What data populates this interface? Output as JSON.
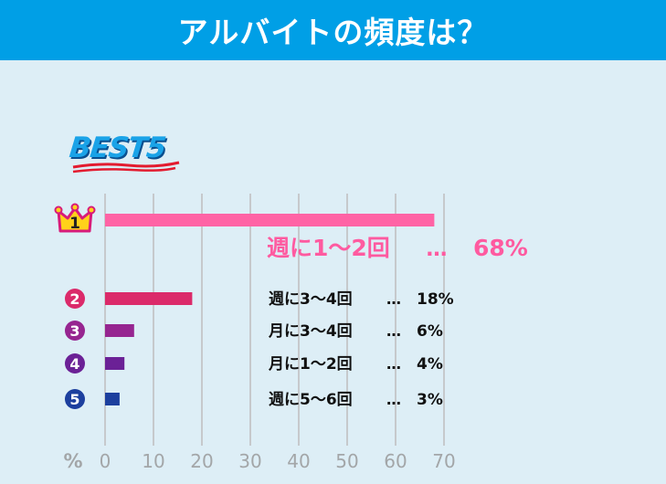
{
  "header": {
    "title": "アルバイトの頻度は？"
  },
  "badge": {
    "text": "BEST5"
  },
  "chart_data": {
    "type": "bar",
    "orientation": "horizontal",
    "title": "アルバイトの頻度は？",
    "categories": [
      "週に1〜2回",
      "週に3〜4回",
      "月に3〜4回",
      "月に1〜2回",
      "週に5〜6回"
    ],
    "values": [
      68,
      18,
      6,
      4,
      3
    ],
    "ranks": [
      "1",
      "2",
      "3",
      "4",
      "5"
    ],
    "value_labels": [
      "68%",
      "18%",
      "6%",
      "4%",
      "3%"
    ],
    "separator": "…",
    "x_unit": "%",
    "xlim": [
      0,
      70
    ],
    "x_ticks": [
      "0",
      "10",
      "20",
      "30",
      "40",
      "50",
      "60",
      "70"
    ],
    "grid": true,
    "colors": [
      "#ff63a5",
      "#db2a6a",
      "#962590",
      "#6b2196",
      "#1c3f9e"
    ],
    "label_colors": [
      "#ff5aa0",
      "#111111",
      "#111111",
      "#111111",
      "#111111"
    ]
  }
}
